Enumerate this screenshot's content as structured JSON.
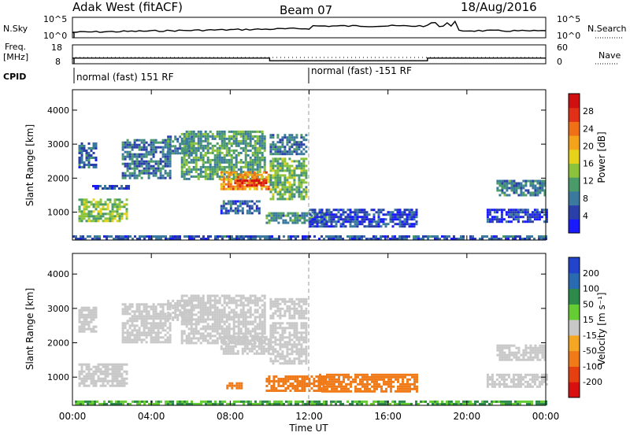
{
  "header": {
    "station": "Adak West (fitACF)",
    "beam": "Beam 07",
    "date": "18/Aug/2016"
  },
  "noise_panel": {
    "left_label": "N.Sky",
    "right_label": "N.Search",
    "left_ticks": [
      "10^5",
      "10^0"
    ],
    "right_ticks": [
      "10^5",
      "10^0"
    ]
  },
  "freq_panel": {
    "left_label_top": "Freq.",
    "left_label_bottom": "[MHz]",
    "right_label": "Nave",
    "left_ticks": [
      "18",
      "8"
    ],
    "right_ticks": [
      "60",
      "0"
    ],
    "freq_levels_mhz": [
      {
        "t0": 0.0,
        "t1": 10.0,
        "value": 11.0
      },
      {
        "t0": 10.0,
        "t1": 18.0,
        "value": 9.6
      },
      {
        "t0": 18.0,
        "t1": 24.0,
        "value": 11.0
      }
    ]
  },
  "cpid": {
    "label": "CPID",
    "segments": [
      {
        "start_hour": 0,
        "text": "normal (fast) 151 RF"
      },
      {
        "start_hour": 12,
        "text": "normal (fast) -151 RF"
      }
    ]
  },
  "power_panel": {
    "ylabel": "Slant Range [km]",
    "colorbar_label": "Power [dB]",
    "colorbar_ticks": [
      "28",
      "24",
      "20",
      "16",
      "12",
      "8",
      "4"
    ],
    "colorbar_colors": [
      "#1a1aff",
      "#2a3fa8",
      "#3b7a9e",
      "#4a9a6a",
      "#8bc43a",
      "#e6d21a",
      "#f5a31a",
      "#f07018",
      "#e03018",
      "#d01010"
    ]
  },
  "velocity_panel": {
    "ylabel": "Slant Range [km]",
    "colorbar_label": "Velocity [m s⁻¹]",
    "colorbar_ticks": [
      "200",
      "100",
      "50",
      "15",
      "-15",
      "-50",
      "-100",
      "-200"
    ],
    "colorbar_colors": [
      "#2244cc",
      "#2a6ab0",
      "#2d8a4a",
      "#66cc33",
      "#c8c8c8",
      "#f5a623",
      "#f07a18",
      "#e64010",
      "#d81010"
    ]
  },
  "chart_data": {
    "type": "heatmap",
    "xlabel": "Time UT",
    "x_tick_labels": [
      "00:00",
      "04:00",
      "08:00",
      "12:00",
      "16:00",
      "20:00",
      "00:00"
    ],
    "x_range_hours": [
      0,
      24
    ],
    "y_tick_labels": [
      "1000",
      "2000",
      "3000",
      "4000"
    ],
    "y_range_km": [
      180,
      4600
    ],
    "power_blobs": [
      {
        "t0": 0.3,
        "t1": 2.7,
        "r0": 750,
        "r1": 1400,
        "level": 14
      },
      {
        "t0": 0.3,
        "t1": 1.2,
        "r0": 2300,
        "r1": 3050,
        "level": 7
      },
      {
        "t0": 1.0,
        "t1": 2.8,
        "r0": 1700,
        "r1": 1800,
        "level": 5
      },
      {
        "t0": 2.5,
        "t1": 5.0,
        "r0": 2000,
        "r1": 3150,
        "level": 8
      },
      {
        "t0": 4.8,
        "t1": 6.0,
        "r0": 2700,
        "r1": 3250,
        "level": 9
      },
      {
        "t0": 5.5,
        "t1": 9.8,
        "r0": 2000,
        "r1": 3400,
        "level": 11
      },
      {
        "t0": 7.5,
        "t1": 10.0,
        "r0": 1700,
        "r1": 2200,
        "level": 22
      },
      {
        "t0": 8.2,
        "t1": 9.8,
        "r0": 1800,
        "r1": 1960,
        "level": 28
      },
      {
        "t0": 7.5,
        "t1": 9.5,
        "r0": 1000,
        "r1": 1350,
        "level": 6
      },
      {
        "t0": 10.0,
        "t1": 11.8,
        "r0": 1400,
        "r1": 2600,
        "level": 13
      },
      {
        "t0": 10.0,
        "t1": 11.8,
        "r0": 2700,
        "r1": 3300,
        "level": 8
      },
      {
        "t0": 9.8,
        "t1": 12.8,
        "r0": 700,
        "r1": 1000,
        "level": 10
      },
      {
        "t0": 12.0,
        "t1": 17.5,
        "r0": 600,
        "r1": 1100,
        "level": 5
      },
      {
        "t0": 21.5,
        "t1": 24.0,
        "r0": 1500,
        "r1": 1950,
        "level": 9
      },
      {
        "t0": 21.0,
        "t1": 24.0,
        "r0": 700,
        "r1": 1100,
        "level": 4
      },
      {
        "t0": 0.0,
        "t1": 24.0,
        "r0": 200,
        "r1": 320,
        "level": 6
      }
    ],
    "velocity_blobs": [
      {
        "t0": 0.3,
        "t1": 2.7,
        "r0": 750,
        "r1": 1400,
        "vel": 0
      },
      {
        "t0": 0.3,
        "t1": 1.2,
        "r0": 2300,
        "r1": 3050,
        "vel": 0
      },
      {
        "t0": 2.5,
        "t1": 5.0,
        "r0": 2000,
        "r1": 3150,
        "vel": 0
      },
      {
        "t0": 4.8,
        "t1": 6.0,
        "r0": 2700,
        "r1": 3250,
        "vel": 0
      },
      {
        "t0": 5.5,
        "t1": 9.8,
        "r0": 2000,
        "r1": 3400,
        "vel": 0
      },
      {
        "t0": 7.5,
        "t1": 10.0,
        "r0": 1700,
        "r1": 2200,
        "vel": 0
      },
      {
        "t0": 10.0,
        "t1": 11.8,
        "r0": 1400,
        "r1": 2600,
        "vel": 0
      },
      {
        "t0": 10.0,
        "t1": 11.8,
        "r0": 2700,
        "r1": 3300,
        "vel": 0
      },
      {
        "t0": 7.8,
        "t1": 8.6,
        "r0": 650,
        "r1": 850,
        "vel": -50
      },
      {
        "t0": 9.8,
        "t1": 12.8,
        "r0": 600,
        "r1": 1050,
        "vel": -50
      },
      {
        "t0": 12.5,
        "t1": 17.5,
        "r0": 600,
        "r1": 1100,
        "vel": -50
      },
      {
        "t0": 21.5,
        "t1": 24.0,
        "r0": 1500,
        "r1": 1950,
        "vel": 0
      },
      {
        "t0": 21.0,
        "t1": 24.0,
        "r0": 700,
        "r1": 1100,
        "vel": 0
      },
      {
        "t0": 0.0,
        "t1": 24.0,
        "r0": 200,
        "r1": 320,
        "vel": 30
      }
    ]
  }
}
